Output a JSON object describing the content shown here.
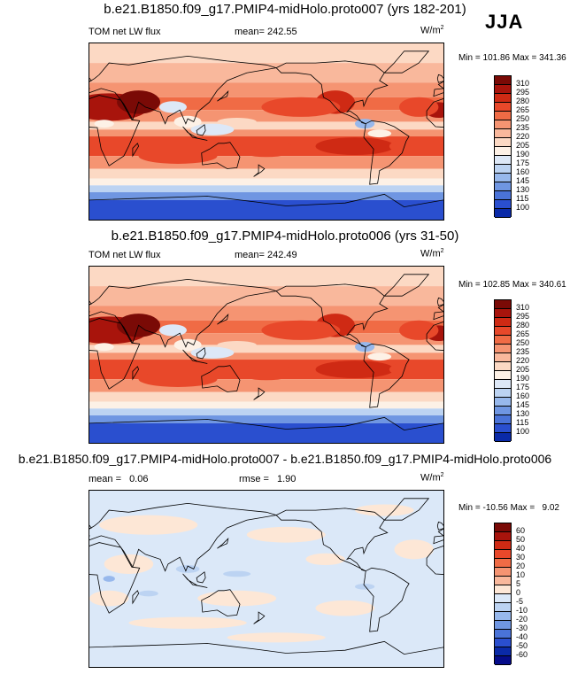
{
  "season": "JJA",
  "units_base": "W/m",
  "units_exp": "2",
  "panels": [
    {
      "title": "b.e21.B1850.f09_g17.PMIP4-midHolo.proto007 (yrs 182-201)",
      "left_label": "TOM net LW flux",
      "stat_label": "mean=",
      "stat_value": "242.55",
      "minmax": "Min = 101.86 Max = 341.36"
    },
    {
      "title": "b.e21.B1850.f09_g17.PMIP4-midHolo.proto006 (yrs 31-50)",
      "left_label": "TOM net LW flux",
      "stat_label": "mean=",
      "stat_value": "242.49",
      "minmax": "Min = 102.85 Max = 340.61"
    },
    {
      "title": "b.e21.B1850.f09_g17.PMIP4-midHolo.proto007 - b.e21.B1850.f09_g17.PMIP4-midHolo.proto006",
      "left_label": "mean =",
      "left_value": "0.06",
      "stat_label": "rmse =",
      "stat_value": "1.90",
      "minmax": "Min = -10.56 Max =   9.02"
    }
  ],
  "colorbars": {
    "flux": {
      "labels": [
        "310",
        "295",
        "280",
        "265",
        "250",
        "235",
        "220",
        "205",
        "190",
        "175",
        "160",
        "145",
        "130",
        "115",
        "100"
      ],
      "colors": [
        "#7a0a06",
        "#a8140c",
        "#cf2a14",
        "#e8482a",
        "#f06b45",
        "#f59472",
        "#f9b89c",
        "#fcd9c4",
        "#fdf1e6",
        "#dde8f7",
        "#bcd3f2",
        "#97b8ec",
        "#6f96e2",
        "#4a73d8",
        "#2a4fcf",
        "#0a2aa8"
      ]
    },
    "diff": {
      "labels": [
        "60",
        "50",
        "40",
        "30",
        "20",
        "10",
        "5",
        "0",
        "-5",
        "-10",
        "-20",
        "-30",
        "-40",
        "-50",
        "-60"
      ],
      "colors": [
        "#7a0a06",
        "#a8140c",
        "#cf2a14",
        "#e8482a",
        "#f06b45",
        "#f59472",
        "#f9b89c",
        "#fde7d6",
        "#dbe8f8",
        "#bcd3f2",
        "#97b8ec",
        "#6f96e2",
        "#4a73d8",
        "#2a4fcf",
        "#0a2aa8",
        "#050c8a"
      ]
    }
  },
  "chart_data": [
    {
      "type": "heatmap",
      "title": "b.e21.B1850.f09_g17.PMIP4-midHolo.proto007 (yrs 182-201)",
      "variable": "TOM net LW flux",
      "units": "W/m2",
      "mean": 242.55,
      "min": 101.86,
      "max": 341.36,
      "levels": [
        100,
        115,
        130,
        145,
        160,
        175,
        190,
        205,
        220,
        235,
        250,
        265,
        280,
        295,
        310
      ]
    },
    {
      "type": "heatmap",
      "title": "b.e21.B1850.f09_g17.PMIP4-midHolo.proto006 (yrs 31-50)",
      "variable": "TOM net LW flux",
      "units": "W/m2",
      "mean": 242.49,
      "min": 102.85,
      "max": 340.61,
      "levels": [
        100,
        115,
        130,
        145,
        160,
        175,
        190,
        205,
        220,
        235,
        250,
        265,
        280,
        295,
        310
      ]
    },
    {
      "type": "heatmap",
      "title": "b.e21.B1850.f09_g17.PMIP4-midHolo.proto007 - b.e21.B1850.f09_g17.PMIP4-midHolo.proto006",
      "units": "W/m2",
      "mean": 0.06,
      "rmse": 1.9,
      "min": -10.56,
      "max": 9.02,
      "levels": [
        -60,
        -50,
        -40,
        -30,
        -20,
        -10,
        -5,
        0,
        5,
        10,
        20,
        30,
        40,
        50,
        60
      ]
    }
  ]
}
